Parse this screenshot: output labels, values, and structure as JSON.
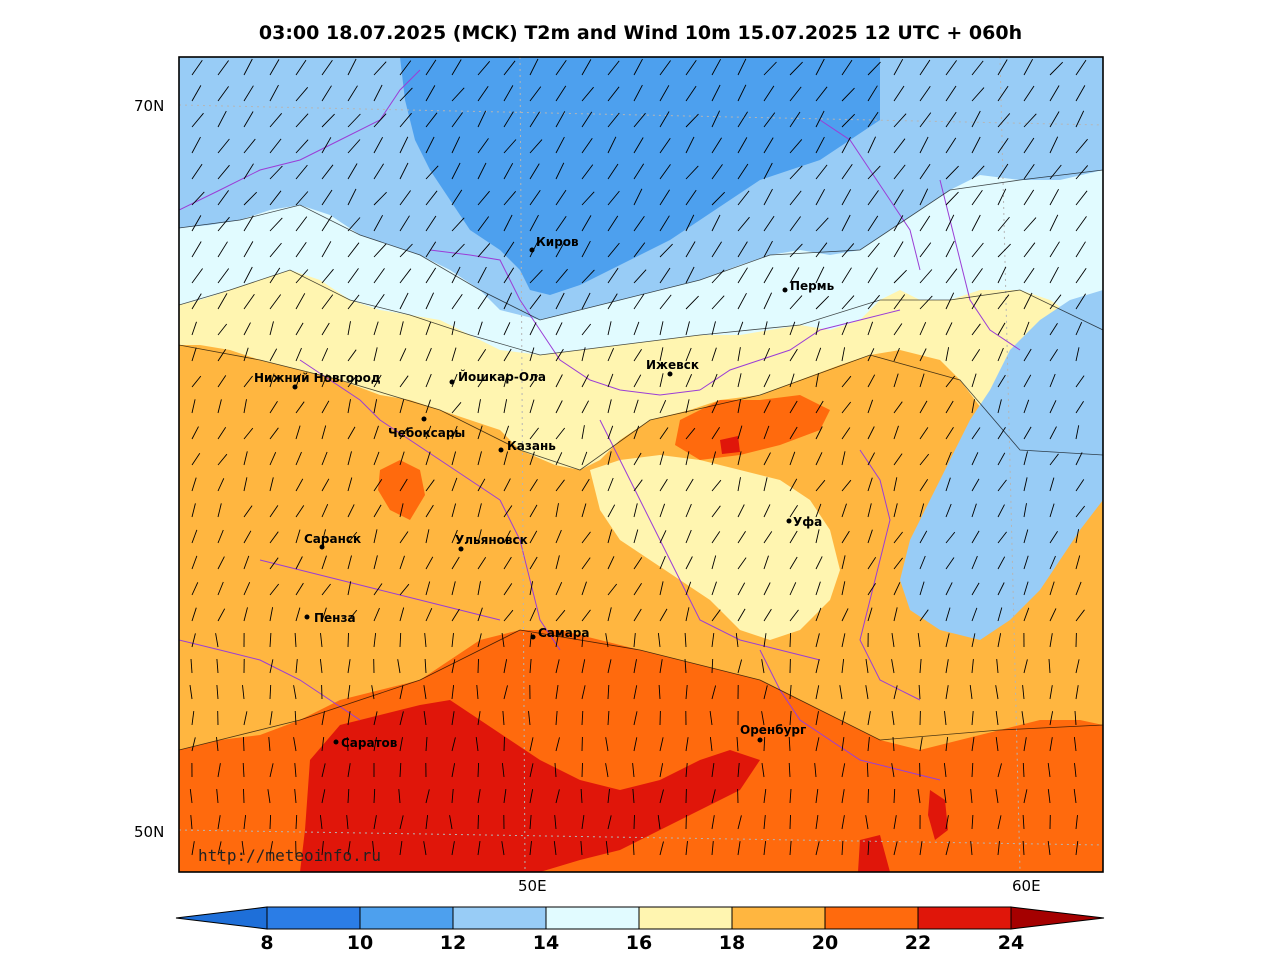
{
  "title": "03:00 18.07.2025 (MCK) T2m and Wind 10m 15.07.2025 12 UTC + 060h",
  "lat_labels": [
    "70N",
    "50N"
  ],
  "lon_labels": [
    "50E",
    "60E"
  ],
  "credit": "http://meteoinfo.ru",
  "cities": [
    {
      "name": "Киров"
    },
    {
      "name": "Пермь"
    },
    {
      "name": "Нижний Новгород"
    },
    {
      "name": "Йошкар-Ола"
    },
    {
      "name": "Ижевск"
    },
    {
      "name": "Чебоксары"
    },
    {
      "name": "Казань"
    },
    {
      "name": "Уфа"
    },
    {
      "name": "Саранск"
    },
    {
      "name": "Ульяновск"
    },
    {
      "name": "Пенза"
    },
    {
      "name": "Самара"
    },
    {
      "name": "Оренбург"
    },
    {
      "name": "Саратов"
    }
  ],
  "colorbar": {
    "ticks": [
      "8",
      "10",
      "12",
      "14",
      "16",
      "18",
      "20",
      "22",
      "24"
    ],
    "colors": [
      "#1e6fd9",
      "#2b7de6",
      "#4da0ee",
      "#98ccf6",
      "#e1fbff",
      "#fff5b0",
      "#ffb640",
      "#ff6a0d",
      "#e0160a",
      "#a50000"
    ]
  }
}
